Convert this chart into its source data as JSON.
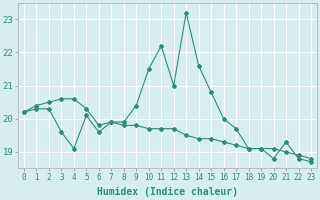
{
  "x": [
    0,
    1,
    2,
    3,
    4,
    5,
    6,
    7,
    8,
    9,
    10,
    11,
    12,
    13,
    14,
    15,
    16,
    17,
    18,
    19,
    20,
    21,
    22,
    23
  ],
  "line1": [
    20.2,
    20.3,
    20.3,
    19.6,
    19.1,
    20.1,
    19.6,
    19.9,
    19.9,
    20.4,
    21.5,
    22.2,
    21.0,
    23.2,
    21.6,
    20.8,
    20.0,
    19.7,
    19.1,
    19.1,
    18.8,
    19.3,
    18.8,
    18.7
  ],
  "line2": [
    20.2,
    20.4,
    20.5,
    20.6,
    20.6,
    20.3,
    19.8,
    19.9,
    19.8,
    19.8,
    19.7,
    19.7,
    19.7,
    19.5,
    19.4,
    19.4,
    19.3,
    19.2,
    19.1,
    19.1,
    19.1,
    19.0,
    18.9,
    18.8
  ],
  "color": "#2e8b74",
  "bg_color": "#d7eef0",
  "grid_color": "#ffffff",
  "xlabel": "Humidex (Indice chaleur)",
  "ylim": [
    18.5,
    23.5
  ],
  "xlim": [
    -0.5,
    23.5
  ],
  "yticks": [
    19,
    20,
    21,
    22,
    23
  ],
  "xticks": [
    0,
    1,
    2,
    3,
    4,
    5,
    6,
    7,
    8,
    9,
    10,
    11,
    12,
    13,
    14,
    15,
    16,
    17,
    18,
    19,
    20,
    21,
    22,
    23
  ],
  "tick_fontsize": 5.5,
  "xlabel_fontsize": 7.0,
  "ytick_fontsize": 6.5
}
